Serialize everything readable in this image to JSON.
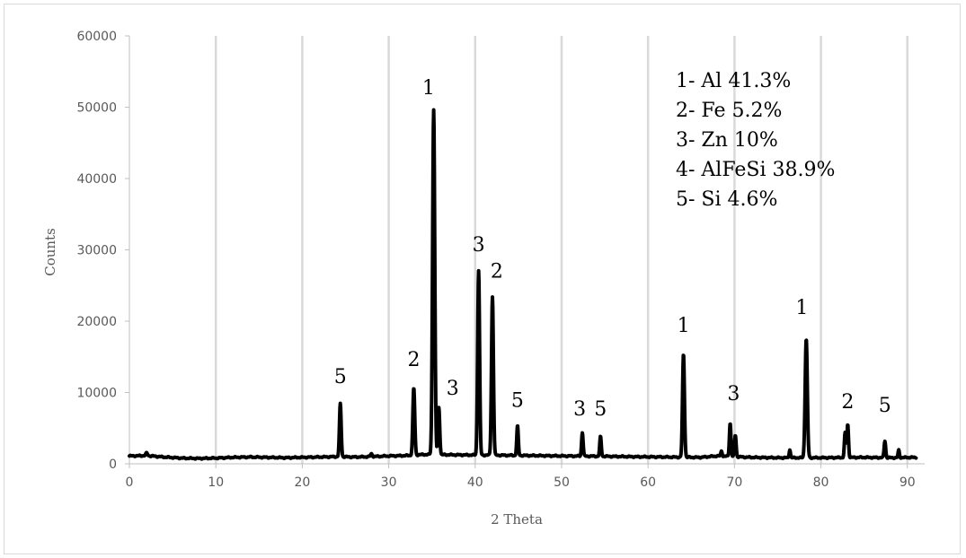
{
  "chart_data": {
    "type": "line",
    "title": "",
    "xlabel": "2 Theta",
    "ylabel": "Counts",
    "xlim": [
      0,
      92
    ],
    "ylim": [
      0,
      60000
    ],
    "x_ticks": [
      0,
      10,
      20,
      30,
      40,
      50,
      60,
      70,
      80,
      90
    ],
    "y_ticks": [
      0,
      10000,
      20000,
      30000,
      40000,
      50000,
      60000
    ],
    "x_tick_labels": [
      "0",
      "10",
      "20",
      "30",
      "40",
      "50",
      "60",
      "70",
      "80",
      "90"
    ],
    "y_tick_labels": [
      "0",
      "10000",
      "20000",
      "30000",
      "40000",
      "50000",
      "60000"
    ],
    "grid": "vertical",
    "line_color": "#000000",
    "baseline_points": [
      [
        0,
        1100
      ],
      [
        2,
        1150
      ],
      [
        4,
        950
      ],
      [
        6,
        800
      ],
      [
        8,
        750
      ],
      [
        10,
        800
      ],
      [
        12,
        900
      ],
      [
        14,
        950
      ],
      [
        16,
        900
      ],
      [
        18,
        850
      ],
      [
        20,
        900
      ],
      [
        22,
        950
      ],
      [
        24,
        1000
      ],
      [
        26,
        950
      ],
      [
        28,
        1000
      ],
      [
        30,
        1100
      ],
      [
        32,
        1150
      ],
      [
        34,
        1300
      ],
      [
        38,
        1250
      ],
      [
        43,
        1200
      ],
      [
        47,
        1150
      ],
      [
        50,
        1100
      ],
      [
        55,
        1050
      ],
      [
        58,
        1000
      ],
      [
        62,
        950
      ],
      [
        66,
        900
      ],
      [
        68,
        1100
      ],
      [
        72,
        900
      ],
      [
        75,
        850
      ],
      [
        80,
        850
      ],
      [
        85,
        900
      ],
      [
        88,
        850
      ],
      [
        91,
        900
      ]
    ],
    "peaks": [
      {
        "x": 24.4,
        "y": 8400,
        "w": 0.2,
        "label": "5"
      },
      {
        "x": 32.9,
        "y": 10600,
        "w": 0.22,
        "label": "2"
      },
      {
        "x": 35.2,
        "y": 49700,
        "w": 0.25,
        "label": "1"
      },
      {
        "x": 35.8,
        "y": 7900,
        "w": 0.2,
        "label": "3"
      },
      {
        "x": 40.4,
        "y": 27100,
        "w": 0.22,
        "label": "3"
      },
      {
        "x": 42.0,
        "y": 23400,
        "w": 0.22,
        "label": "2"
      },
      {
        "x": 44.9,
        "y": 5300,
        "w": 0.18,
        "label": "5"
      },
      {
        "x": 52.4,
        "y": 4400,
        "w": 0.18,
        "label": "3"
      },
      {
        "x": 54.5,
        "y": 3800,
        "w": 0.18,
        "label": "5"
      },
      {
        "x": 64.1,
        "y": 15400,
        "w": 0.22,
        "label": "1"
      },
      {
        "x": 69.5,
        "y": 5700,
        "w": 0.18,
        "label": "3"
      },
      {
        "x": 70.1,
        "y": 4000,
        "w": 0.18,
        "label": ""
      },
      {
        "x": 78.3,
        "y": 17500,
        "w": 0.25,
        "label": "1"
      },
      {
        "x": 82.8,
        "y": 4300,
        "w": 0.18,
        "label": ""
      },
      {
        "x": 83.1,
        "y": 5500,
        "w": 0.18,
        "label": "2"
      },
      {
        "x": 87.4,
        "y": 3200,
        "w": 0.18,
        "label": "5"
      },
      {
        "x": 89.0,
        "y": 1900,
        "w": 0.15,
        "label": ""
      },
      {
        "x": 76.4,
        "y": 2000,
        "w": 0.15,
        "label": ""
      },
      {
        "x": 68.5,
        "y": 1800,
        "w": 0.15,
        "label": ""
      },
      {
        "x": 2.0,
        "y": 1500,
        "w": 0.2,
        "label": ""
      },
      {
        "x": 28.0,
        "y": 1400,
        "w": 0.2,
        "label": ""
      }
    ],
    "peak_annotations": [
      {
        "text": "5",
        "x": 24.4,
        "y": 11300
      },
      {
        "text": "2",
        "x": 32.9,
        "y": 13700
      },
      {
        "text": "1",
        "x": 34.6,
        "y": 51800
      },
      {
        "text": "3",
        "x": 37.4,
        "y": 9700
      },
      {
        "text": "3",
        "x": 40.4,
        "y": 29800
      },
      {
        "text": "2",
        "x": 42.5,
        "y": 26100
      },
      {
        "text": "5",
        "x": 44.9,
        "y": 8000
      },
      {
        "text": "3",
        "x": 52.1,
        "y": 6800
      },
      {
        "text": "5",
        "x": 54.5,
        "y": 6800
      },
      {
        "text": "1",
        "x": 64.1,
        "y": 18500
      },
      {
        "text": "3",
        "x": 69.9,
        "y": 8900
      },
      {
        "text": "1",
        "x": 77.8,
        "y": 21000
      },
      {
        "text": "2",
        "x": 83.1,
        "y": 7800
      },
      {
        "text": "5",
        "x": 87.4,
        "y": 7300
      }
    ],
    "legend": {
      "placement": "top-right",
      "entries": [
        "1- Al 41.3%",
        "2- Fe 5.2%",
        "3- Zn 10%",
        "4- AlFeSi 38.9%",
        "5- Si 4.6%"
      ]
    }
  }
}
